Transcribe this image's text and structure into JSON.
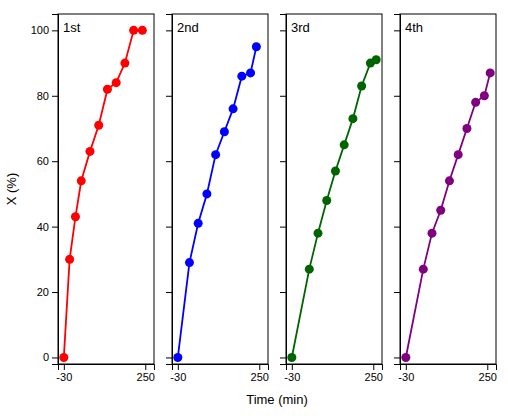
{
  "chart_data": [
    {
      "type": "line",
      "xlabel": "Time (min)",
      "ylabel": "X (%)",
      "xlim": [
        -50,
        280
      ],
      "xticks": [
        -30,
        250
      ],
      "ylim": [
        -2,
        105
      ],
      "yticks": [
        0,
        20,
        40,
        60,
        80,
        100
      ],
      "series": [
        {
          "name": "1st",
          "color": "#FF0000",
          "marker": "circle",
          "x": [
            -30,
            -10,
            10,
            30,
            60,
            90,
            120,
            150,
            180,
            210,
            240
          ],
          "values": [
            0,
            30,
            43,
            54,
            63,
            71,
            82,
            84,
            90,
            100,
            100
          ]
        }
      ]
    },
    {
      "type": "line",
      "tick_labels": "x",
      "xlim": [
        -50,
        280
      ],
      "xticks": [
        -30,
        250
      ],
      "ylim": [
        -2,
        105
      ],
      "yticks": [
        0,
        20,
        40,
        60,
        80,
        100
      ],
      "series": [
        {
          "name": "2nd",
          "color": "#0000FF",
          "marker": "circle",
          "x": [
            -30,
            10,
            40,
            70,
            100,
            130,
            160,
            190,
            220,
            240
          ],
          "values": [
            0,
            29,
            41,
            50,
            62,
            69,
            76,
            86,
            87,
            95
          ]
        }
      ]
    },
    {
      "type": "line",
      "tick_labels": "x",
      "xlim": [
        -50,
        280
      ],
      "xticks": [
        -30,
        250
      ],
      "ylim": [
        -2,
        105
      ],
      "yticks": [
        0,
        20,
        40,
        60,
        80,
        100
      ],
      "series": [
        {
          "name": "3rd",
          "color": "#006400",
          "marker": "circle",
          "x": [
            -30,
            30,
            60,
            90,
            120,
            150,
            180,
            210,
            240,
            260
          ],
          "values": [
            0,
            27,
            38,
            48,
            57,
            65,
            73,
            83,
            90,
            91
          ]
        }
      ]
    },
    {
      "type": "line",
      "tick_labels": "x",
      "xlim": [
        -50,
        280
      ],
      "xticks": [
        -30,
        250
      ],
      "ylim": [
        -2,
        105
      ],
      "yticks": [
        0,
        20,
        40,
        60,
        80,
        100
      ],
      "series": [
        {
          "name": "4th",
          "color": "#800080",
          "marker": "circle",
          "x": [
            -30,
            30,
            60,
            90,
            120,
            150,
            180,
            210,
            240,
            260
          ],
          "values": [
            0,
            27,
            38,
            45,
            54,
            62,
            70,
            78,
            80,
            87
          ]
        }
      ]
    }
  ]
}
